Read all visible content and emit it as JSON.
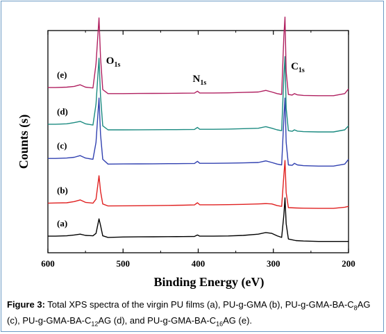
{
  "chart_data": {
    "type": "line",
    "xlabel": "Binding Energy (eV)",
    "ylabel": "Counts (s)",
    "x_reversed": true,
    "xlim": [
      600,
      200
    ],
    "x_ticks": [
      "600",
      "500",
      "400",
      "300",
      "200"
    ],
    "y_ticks_shown": false,
    "legend": "none",
    "peak_labels": [
      {
        "main": "O",
        "sub": "1s",
        "x": 530
      },
      {
        "main": "N",
        "sub": "1s",
        "x": 400
      },
      {
        "main": "C",
        "sub": "1s",
        "x": 284
      }
    ],
    "series": [
      {
        "name": "(a)",
        "color": "#000000",
        "offset": 0.0,
        "points": [
          [
            600,
            0.085
          ],
          [
            590,
            0.085
          ],
          [
            575,
            0.09
          ],
          [
            565,
            0.1
          ],
          [
            557,
            0.11
          ],
          [
            550,
            0.095
          ],
          [
            540,
            0.09
          ],
          [
            536,
            0.12
          ],
          [
            532,
            0.3
          ],
          [
            530,
            0.22
          ],
          [
            527,
            0.09
          ],
          [
            520,
            0.07
          ],
          [
            500,
            0.075
          ],
          [
            480,
            0.077
          ],
          [
            460,
            0.078
          ],
          [
            440,
            0.079
          ],
          [
            420,
            0.08
          ],
          [
            405,
            0.082
          ],
          [
            401,
            0.1
          ],
          [
            398,
            0.085
          ],
          [
            380,
            0.085
          ],
          [
            360,
            0.088
          ],
          [
            340,
            0.095
          ],
          [
            320,
            0.11
          ],
          [
            310,
            0.13
          ],
          [
            302,
            0.12
          ],
          [
            295,
            0.09
          ],
          [
            289,
            0.07
          ],
          [
            286,
            0.35
          ],
          [
            284.5,
            0.56
          ],
          [
            283,
            0.24
          ],
          [
            280,
            0.05
          ],
          [
            270,
            0.03
          ],
          [
            260,
            0.025
          ],
          [
            240,
            0.02
          ],
          [
            220,
            0.02
          ],
          [
            205,
            0.02
          ],
          [
            200,
            0.02
          ]
        ]
      },
      {
        "name": "(b)",
        "color": "#e02020",
        "offset": 0.17,
        "points": [
          [
            600,
            0.07
          ],
          [
            590,
            0.072
          ],
          [
            575,
            0.075
          ],
          [
            565,
            0.09
          ],
          [
            557,
            0.11
          ],
          [
            550,
            0.08
          ],
          [
            540,
            0.07
          ],
          [
            536,
            0.12
          ],
          [
            532,
            0.41
          ],
          [
            530,
            0.22
          ],
          [
            527,
            0.06
          ],
          [
            520,
            0.035
          ],
          [
            500,
            0.037
          ],
          [
            480,
            0.038
          ],
          [
            460,
            0.04
          ],
          [
            440,
            0.042
          ],
          [
            420,
            0.045
          ],
          [
            405,
            0.048
          ],
          [
            401,
            0.075
          ],
          [
            398,
            0.05
          ],
          [
            380,
            0.05
          ],
          [
            360,
            0.052
          ],
          [
            340,
            0.055
          ],
          [
            320,
            0.06
          ],
          [
            310,
            0.065
          ],
          [
            302,
            0.06
          ],
          [
            295,
            0.04
          ],
          [
            289,
            0.03
          ],
          [
            286,
            0.42
          ],
          [
            284.5,
            0.6
          ],
          [
            283,
            0.2
          ],
          [
            280,
            0.015
          ],
          [
            270,
            0.01
          ],
          [
            260,
            0.008
          ],
          [
            240,
            0.005
          ],
          [
            220,
            0.005
          ],
          [
            205,
            0.02
          ],
          [
            200,
            0.03
          ]
        ]
      },
      {
        "name": "(c)",
        "color": "#3040b0",
        "offset": 0.38,
        "points": [
          [
            600,
            0.1
          ],
          [
            590,
            0.1
          ],
          [
            575,
            0.105
          ],
          [
            565,
            0.115
          ],
          [
            557,
            0.135
          ],
          [
            550,
            0.105
          ],
          [
            540,
            0.09
          ],
          [
            536,
            0.3
          ],
          [
            532,
            0.85
          ],
          [
            530,
            0.4
          ],
          [
            527,
            0.09
          ],
          [
            520,
            0.03
          ],
          [
            500,
            0.032
          ],
          [
            480,
            0.033
          ],
          [
            460,
            0.034
          ],
          [
            440,
            0.035
          ],
          [
            420,
            0.036
          ],
          [
            405,
            0.038
          ],
          [
            401,
            0.065
          ],
          [
            398,
            0.04
          ],
          [
            380,
            0.04
          ],
          [
            360,
            0.042
          ],
          [
            340,
            0.045
          ],
          [
            320,
            0.05
          ],
          [
            310,
            0.07
          ],
          [
            302,
            0.05
          ],
          [
            295,
            0.03
          ],
          [
            289,
            0.02
          ],
          [
            286,
            0.6
          ],
          [
            284.5,
            0.85
          ],
          [
            283,
            0.3
          ],
          [
            280,
            0.02
          ],
          [
            275,
            0.015
          ],
          [
            272,
            0.04
          ],
          [
            268,
            0.02
          ],
          [
            260,
            0.01
          ],
          [
            240,
            0.005
          ],
          [
            220,
            0.005
          ],
          [
            205,
            0.03
          ],
          [
            200,
            0.09
          ]
        ]
      },
      {
        "name": "(d)",
        "color": "#1a8a80",
        "offset": 0.55,
        "points": [
          [
            600,
            0.1
          ],
          [
            590,
            0.1
          ],
          [
            575,
            0.105
          ],
          [
            565,
            0.12
          ],
          [
            557,
            0.135
          ],
          [
            550,
            0.105
          ],
          [
            540,
            0.09
          ],
          [
            536,
            0.35
          ],
          [
            532,
            0.92
          ],
          [
            530,
            0.45
          ],
          [
            527,
            0.08
          ],
          [
            520,
            0.03
          ],
          [
            500,
            0.03
          ],
          [
            480,
            0.031
          ],
          [
            460,
            0.032
          ],
          [
            440,
            0.033
          ],
          [
            420,
            0.034
          ],
          [
            405,
            0.035
          ],
          [
            401,
            0.06
          ],
          [
            398,
            0.037
          ],
          [
            380,
            0.037
          ],
          [
            360,
            0.04
          ],
          [
            340,
            0.045
          ],
          [
            320,
            0.05
          ],
          [
            310,
            0.07
          ],
          [
            302,
            0.05
          ],
          [
            295,
            0.03
          ],
          [
            289,
            0.02
          ],
          [
            286,
            0.7
          ],
          [
            284.5,
            0.94
          ],
          [
            283,
            0.3
          ],
          [
            280,
            0.02
          ],
          [
            275,
            0.012
          ],
          [
            272,
            0.03
          ],
          [
            268,
            0.015
          ],
          [
            260,
            0.008
          ],
          [
            240,
            0.004
          ],
          [
            220,
            0.004
          ],
          [
            205,
            0.03
          ],
          [
            200,
            0.08
          ]
        ]
      },
      {
        "name": "(e)",
        "color": "#b02060",
        "offset": 0.73,
        "points": [
          [
            600,
            0.105
          ],
          [
            590,
            0.105
          ],
          [
            575,
            0.11
          ],
          [
            565,
            0.12
          ],
          [
            557,
            0.14
          ],
          [
            550,
            0.11
          ],
          [
            540,
            0.1
          ],
          [
            536,
            0.4
          ],
          [
            532,
            0.97
          ],
          [
            530,
            0.48
          ],
          [
            527,
            0.08
          ],
          [
            520,
            0.03
          ],
          [
            500,
            0.03
          ],
          [
            480,
            0.032
          ],
          [
            460,
            0.033
          ],
          [
            440,
            0.034
          ],
          [
            420,
            0.035
          ],
          [
            405,
            0.036
          ],
          [
            401,
            0.06
          ],
          [
            398,
            0.038
          ],
          [
            380,
            0.038
          ],
          [
            360,
            0.04
          ],
          [
            340,
            0.045
          ],
          [
            320,
            0.05
          ],
          [
            310,
            0.07
          ],
          [
            302,
            0.05
          ],
          [
            295,
            0.03
          ],
          [
            289,
            0.02
          ],
          [
            286,
            0.75
          ],
          [
            284.5,
            0.98
          ],
          [
            283,
            0.3
          ],
          [
            280,
            0.02
          ],
          [
            275,
            0.012
          ],
          [
            272,
            0.03
          ],
          [
            268,
            0.015
          ],
          [
            260,
            0.008
          ],
          [
            240,
            0.004
          ],
          [
            220,
            0.004
          ],
          [
            205,
            0.03
          ],
          [
            200,
            0.09
          ]
        ]
      }
    ]
  },
  "caption": {
    "label": "Figure 3:",
    "parts": [
      {
        "t": " Total XPS spectra of the virgin PU films (a), PU-g-GMA (b), PU-g-GMA-BA-C"
      },
      {
        "sub": "8"
      },
      {
        "t": "AG (c), PU-g-GMA-BA-C"
      },
      {
        "sub": "12"
      },
      {
        "t": "AG (d), and PU-g-GMA-BA-C"
      },
      {
        "sub": "16"
      },
      {
        "t": "AG (e)."
      }
    ]
  }
}
